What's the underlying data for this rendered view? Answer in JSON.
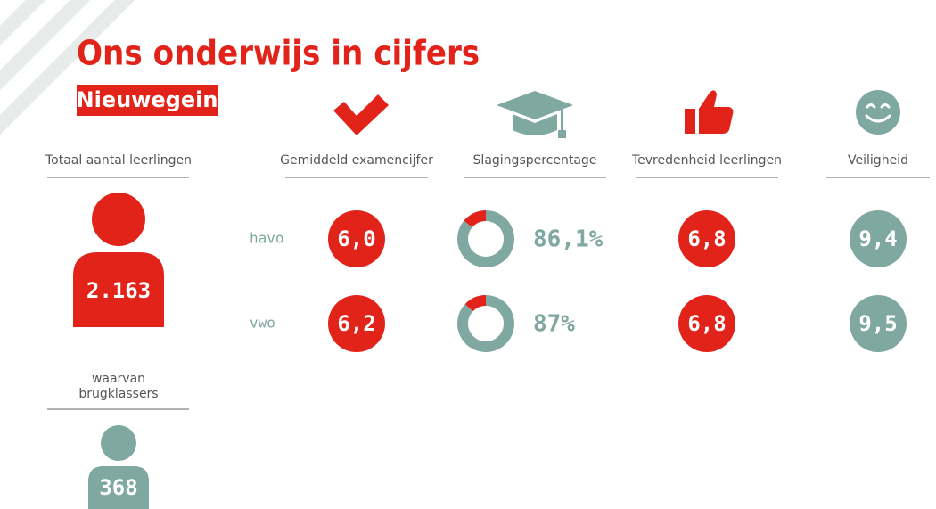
{
  "header": {
    "title": "Ons onderwijs in cijfers",
    "subtitle": "Nieuwegein"
  },
  "students": {
    "label": "Totaal aantal leerlingen",
    "value": "2.163"
  },
  "first_years": {
    "label": [
      "waarvan",
      "brugklassers"
    ],
    "value": "368"
  },
  "columns": [
    "Gemiddeld examencijfer",
    "Slagingspercentage",
    "Tevredenheid leerlingen",
    "Veiligheid"
  ],
  "rows": [
    {
      "label": "havo",
      "exam": "6,0",
      "pass": {
        "value": 86.1,
        "label": "86,1%"
      },
      "satisfaction": "6,8",
      "safety": "9,4"
    },
    {
      "label": "vwo",
      "exam": "6,2",
      "pass": {
        "value": 87,
        "label": "87%"
      },
      "satisfaction": "6,8",
      "safety": "9,5"
    }
  ]
}
